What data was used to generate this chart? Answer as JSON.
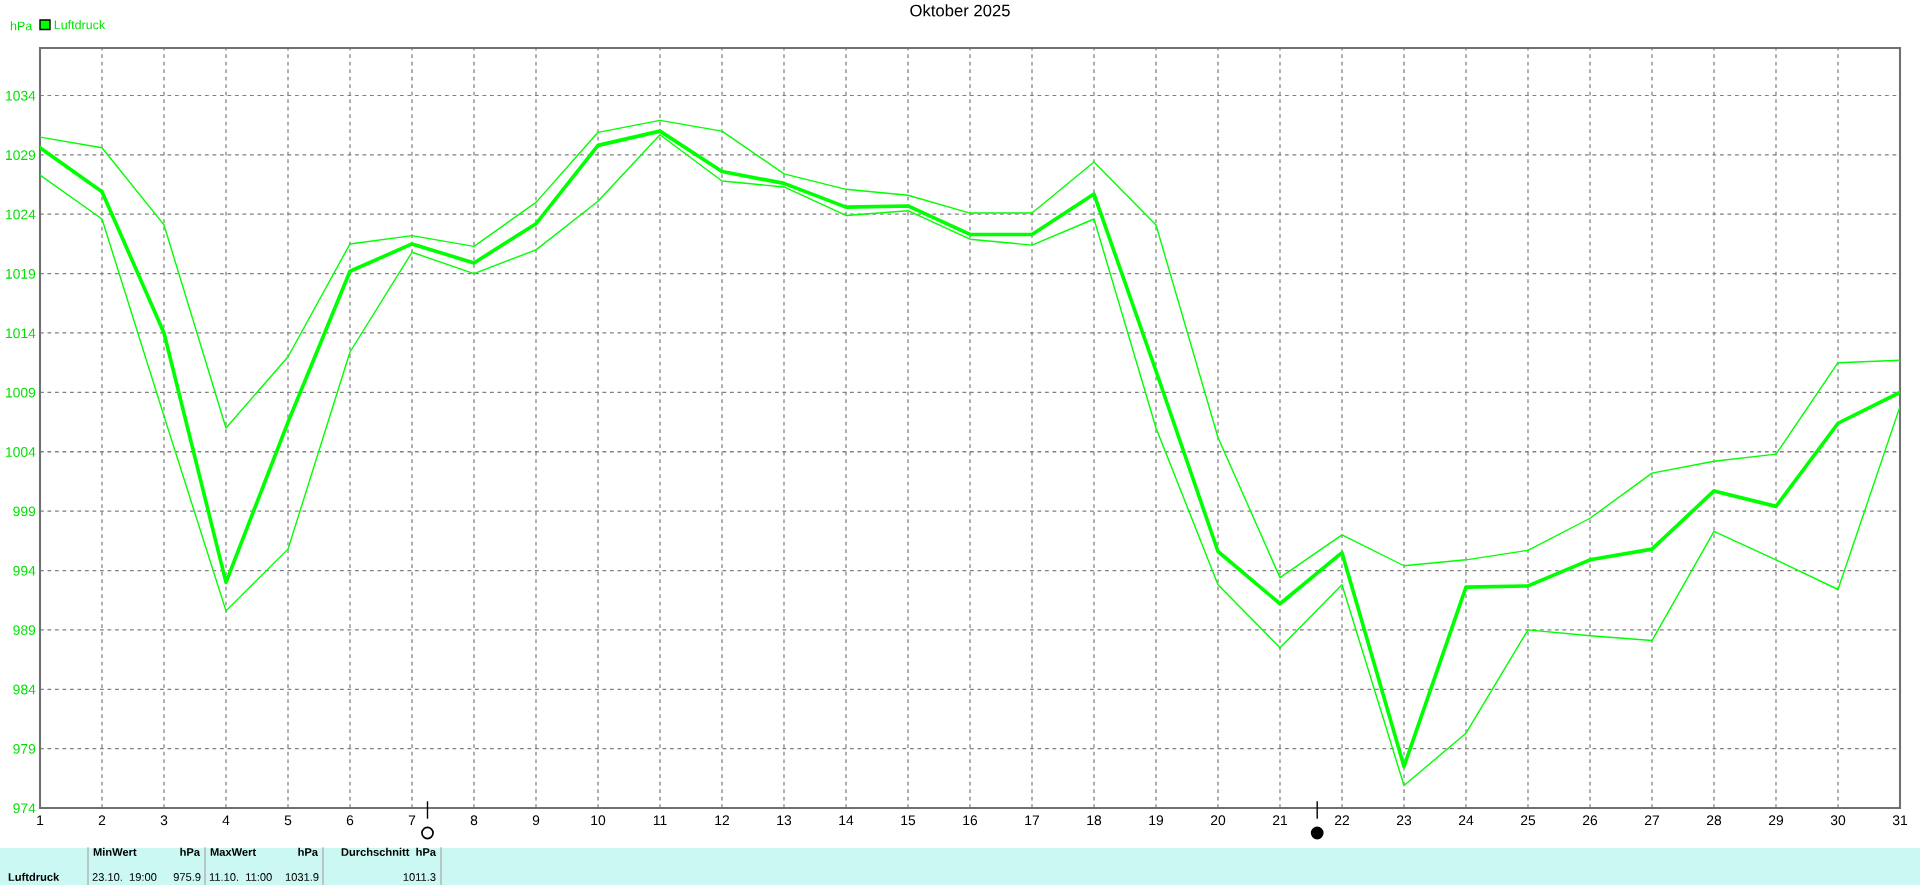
{
  "chart_data": {
    "type": "line",
    "title": "Oktober 2025",
    "ylabel": "hPa",
    "x": [
      1,
      2,
      3,
      4,
      5,
      6,
      7,
      8,
      9,
      10,
      11,
      12,
      13,
      14,
      15,
      16,
      17,
      18,
      19,
      20,
      21,
      22,
      23,
      24,
      25,
      26,
      27,
      28,
      29,
      30,
      31
    ],
    "series": [
      {
        "name": "Luftdruck",
        "color": "#00ff00",
        "values": [
          1029.6,
          1025.9,
          1014.0,
          993.0,
          1006.5,
          1019.2,
          1021.5,
          1019.9,
          1023.2,
          1029.8,
          1031.0,
          1027.6,
          1026.6,
          1024.6,
          1024.7,
          1022.3,
          1022.3,
          1025.7,
          1010.8,
          995.6,
          991.2,
          995.5,
          977.5,
          992.6,
          992.7,
          994.9,
          995.8,
          1000.7,
          999.4,
          1006.4,
          1009.0
        ]
      },
      {
        "color": "#00ff00",
        "values": [
          1030.5,
          1029.6,
          1023.1,
          1006.0,
          1012.0,
          1021.5,
          1022.2,
          1021.3,
          1025.0,
          1030.9,
          1031.9,
          1031.0,
          1027.4,
          1026.1,
          1025.6,
          1024.1,
          1024.1,
          1028.4,
          1023.1,
          1005.2,
          993.4,
          997.0,
          994.4,
          994.9,
          995.7,
          998.4,
          1002.2,
          1003.2,
          1003.8,
          1011.5,
          1011.7
        ]
      },
      {
        "color": "#00ff00",
        "values": [
          1027.3,
          1023.6,
          1007.0,
          990.6,
          995.8,
          1012.4,
          1020.8,
          1019.0,
          1021.0,
          1025.1,
          1030.7,
          1026.8,
          1026.3,
          1023.9,
          1024.3,
          1021.9,
          1021.4,
          1023.6,
          1006.0,
          992.8,
          987.5,
          992.8,
          975.9,
          980.3,
          989.0,
          988.5,
          988.1,
          997.3,
          994.9,
          992.4,
          1007.8
        ]
      }
    ],
    "xlim": [
      1,
      31
    ],
    "xticks": [
      1,
      2,
      3,
      4,
      5,
      6,
      7,
      8,
      9,
      10,
      11,
      12,
      13,
      14,
      15,
      16,
      17,
      18,
      19,
      20,
      21,
      22,
      23,
      24,
      25,
      26,
      27,
      28,
      29,
      30,
      31
    ],
    "ylim": [
      974,
      1038
    ],
    "yticks": [
      974,
      979,
      984,
      989,
      994,
      999,
      1004,
      1009,
      1014,
      1019,
      1024,
      1029,
      1034
    ],
    "grid": true,
    "legend": "top left",
    "line_style": "solid",
    "marker": "none",
    "annotations": [
      "Luftdruck",
      "MinWert",
      "hPa",
      "23.10.  19:00",
      "975.9",
      "MaxWert",
      "hPa",
      "11.10.  11:00",
      "1031.9",
      "Durchschnitt  hPa",
      "1011.3"
    ]
  }
}
